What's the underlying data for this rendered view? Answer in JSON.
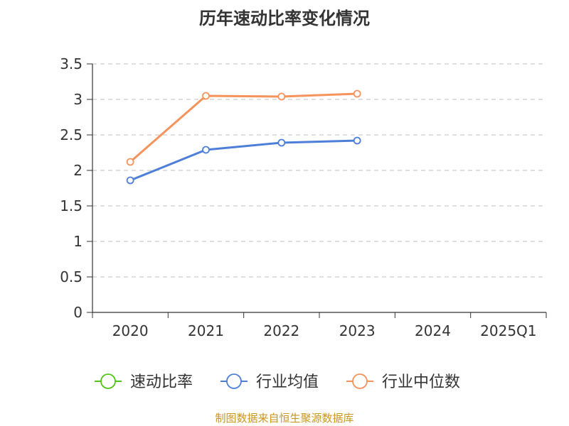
{
  "chart_data": {
    "type": "line",
    "title": "历年速动比率变化情况",
    "categories": [
      "2020",
      "2021",
      "2022",
      "2023",
      "2024",
      "2025Q1"
    ],
    "ylim": [
      0,
      3.5
    ],
    "yticks": [
      "0",
      "0.5",
      "1",
      "1.5",
      "2",
      "2.5",
      "3",
      "3.5"
    ],
    "grid": true,
    "legend_position": "bottom",
    "series": [
      {
        "name": "速动比率",
        "color": "#52c41a",
        "values": [
          null,
          null,
          null,
          null,
          null,
          null
        ]
      },
      {
        "name": "行业均值",
        "color": "#4e7fd8",
        "values": [
          1.86,
          2.29,
          2.39,
          2.42,
          null,
          null
        ]
      },
      {
        "name": "行业中位数",
        "color": "#f4935c",
        "values": [
          2.12,
          3.05,
          3.04,
          3.08,
          null,
          null
        ]
      }
    ]
  },
  "source": "制图数据来自恒生聚源数据库"
}
